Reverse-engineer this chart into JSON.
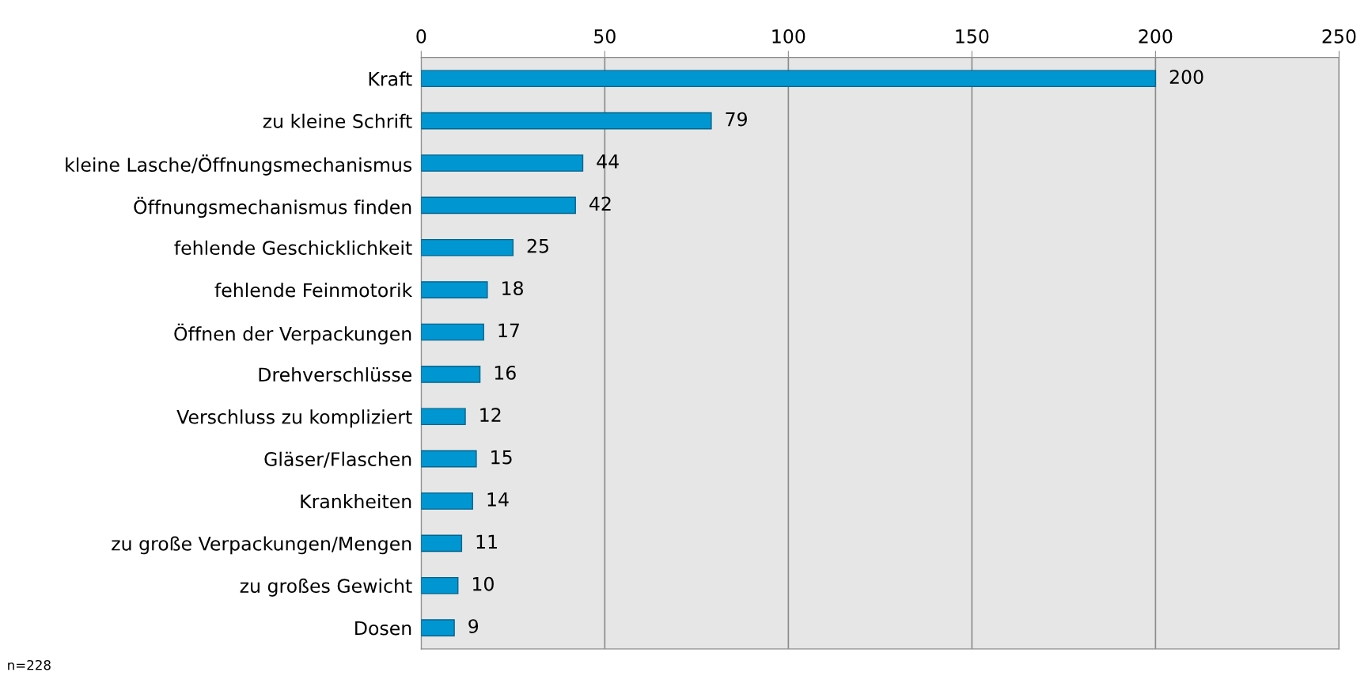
{
  "chart_data": {
    "type": "bar",
    "orientation": "horizontal",
    "categories": [
      "Kraft",
      "zu kleine Schrift",
      "kleine Lasche/Öffnungsmechanismus",
      "Öffnungsmechanismus finden",
      "fehlende Geschicklichkeit",
      "fehlende Feinmotorik",
      "Öffnen der Verpackungen",
      "Drehverschlüsse",
      "Verschluss zu kompliziert",
      "Gläser/Flaschen",
      "Krankheiten",
      "zu große Verpackungen/Mengen",
      "zu großes Gewicht",
      "Dosen"
    ],
    "values": [
      200,
      79,
      44,
      42,
      25,
      18,
      17,
      16,
      12,
      15,
      14,
      11,
      10,
      9
    ],
    "color": "#0096d2",
    "data_labels": true,
    "xlim": [
      0,
      250
    ],
    "xticks": [
      0,
      50,
      100,
      150,
      200,
      250
    ],
    "grid": "x",
    "annotations": [
      "n=228"
    ]
  }
}
